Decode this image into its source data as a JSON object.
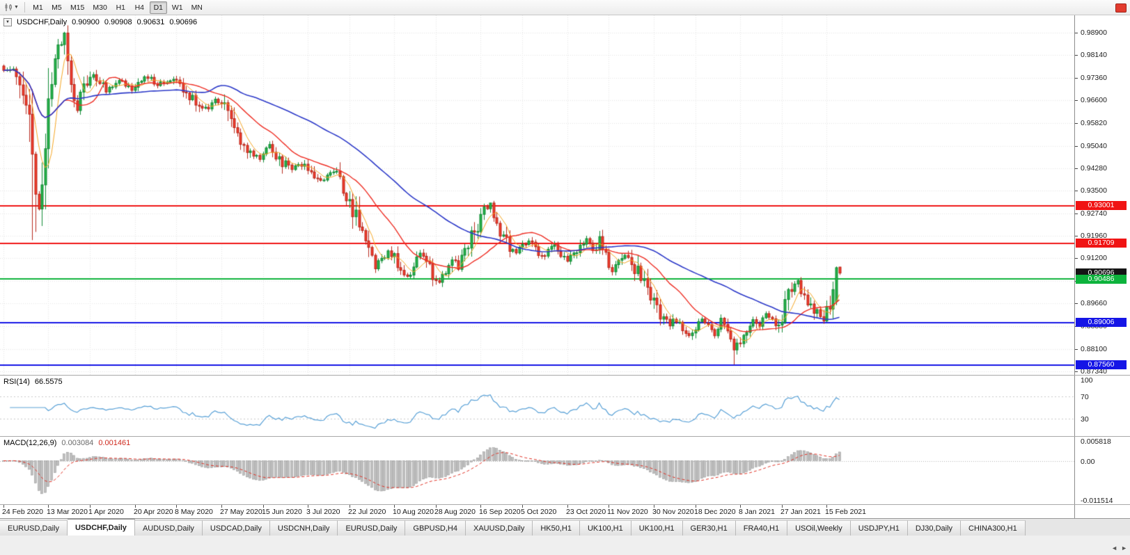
{
  "toolbar": {
    "timeframes": [
      "M1",
      "M5",
      "M15",
      "M30",
      "H1",
      "H4",
      "D1",
      "W1",
      "MN"
    ],
    "active_timeframe": "D1"
  },
  "chart": {
    "legend": {
      "symbol_label": "USDCHF,Daily",
      "open": "0.90900",
      "high": "0.90908",
      "low": "0.90631",
      "close": "0.90696"
    },
    "price_scale": [
      "0.98900",
      "0.98140",
      "0.97360",
      "0.96600",
      "0.95820",
      "0.95040",
      "0.94280",
      "0.93500",
      "0.92740",
      "0.91960",
      "0.91200",
      "0.90420",
      "0.89660",
      "0.88880",
      "0.88100",
      "0.87340"
    ],
    "price_markers": [
      {
        "label": "0.93001",
        "value": 0.93001,
        "color": "#f01414",
        "type": "resistance-line"
      },
      {
        "label": "0.91709",
        "value": 0.91709,
        "color": "#f01414",
        "type": "resistance-line"
      },
      {
        "label": "0.90696",
        "value": 0.90696,
        "color": "#151515",
        "type": "current-price"
      },
      {
        "label": "0.90486",
        "value": 0.90486,
        "color": "#0db33c",
        "type": "support-line"
      },
      {
        "label": "0.89006",
        "value": 0.89006,
        "color": "#1515e6",
        "type": "support-line"
      },
      {
        "label": "0.87560",
        "value": 0.8756,
        "color": "#1515e6",
        "type": "support-line"
      }
    ],
    "time_labels": [
      "24 Feb 2020",
      "13 Mar 2020",
      "1 Apr 2020",
      "20 Apr 2020",
      "8 May 2020",
      "27 May 2020",
      "15 Jun 2020",
      "3 Jul 2020",
      "22 Jul 2020",
      "10 Aug 2020",
      "28 Aug 2020",
      "16 Sep 2020",
      "5 Oct 2020",
      "23 Oct 2020",
      "11 Nov 2020",
      "30 Nov 2020",
      "18 Dec 2020",
      "8 Jan 2021",
      "27 Jan 2021",
      "15 Feb 2021"
    ]
  },
  "rsi": {
    "label": "RSI(14)",
    "value": "66.5575",
    "line_color": "#58a0d6",
    "axis": [
      {
        "label": "100",
        "value": 100,
        "line": false
      },
      {
        "label": "70",
        "value": 70,
        "line": true
      },
      {
        "label": "30",
        "value": 30,
        "line": true
      }
    ]
  },
  "macd": {
    "label": "MACD(12,26,9)",
    "main_value": "0.003084",
    "signal_value": "0.001461",
    "hist_fill": "#bfbfbf",
    "hist_border": "#8c8c8c",
    "signal_color": "#e03024",
    "axis": [
      {
        "label": "0.005818",
        "value": 0.005818,
        "line": false
      },
      {
        "label": "0.00",
        "value": 0,
        "line": true
      },
      {
        "label": "-0.011514",
        "value": -0.011514,
        "line": false
      }
    ]
  },
  "tabs": {
    "items": [
      {
        "label": "EURUSD,Daily",
        "active": false
      },
      {
        "label": "USDCHF,Daily",
        "active": true
      },
      {
        "label": "AUDUSD,Daily",
        "active": false
      },
      {
        "label": "USDCAD,Daily",
        "active": false
      },
      {
        "label": "USDCNH,Daily",
        "active": false
      },
      {
        "label": "EURUSD,Daily",
        "active": false
      },
      {
        "label": "GBPUSD,H4",
        "active": false
      },
      {
        "label": "XAUUSD,Daily",
        "active": false
      },
      {
        "label": "HK50,H1",
        "active": false
      },
      {
        "label": "UK100,H1",
        "active": false
      },
      {
        "label": "UK100,H1",
        "active": false
      },
      {
        "label": "GER30,H1",
        "active": false
      },
      {
        "label": "FRA40,H1",
        "active": false
      },
      {
        "label": "USOil,Weekly",
        "active": false
      },
      {
        "label": "USDJPY,H1",
        "active": false
      },
      {
        "label": "DJ30,Daily",
        "active": false
      },
      {
        "label": "CHINA300,H1",
        "active": false
      }
    ],
    "scroll_left": "◄",
    "scroll_right": "►"
  },
  "chart_data": {
    "type": "candlestick",
    "symbol": "USDCHF",
    "timeframe": "Daily",
    "n_candles": 262,
    "seed": 13,
    "price_axis": {
      "max": 0.989,
      "min": 0.8734
    },
    "last_candle": {
      "open": 0.909,
      "high": 0.90908,
      "low": 0.90631,
      "close": 0.90696
    },
    "close_keyframes": [
      [
        0,
        0.976
      ],
      [
        3,
        0.9775
      ],
      [
        6,
        0.974
      ],
      [
        8,
        0.96
      ],
      [
        9,
        0.942
      ],
      [
        10,
        0.933
      ],
      [
        11,
        0.928
      ],
      [
        12,
        0.94
      ],
      [
        13,
        0.956
      ],
      [
        15,
        0.974
      ],
      [
        17,
        0.984
      ],
      [
        19,
        0.988
      ],
      [
        20,
        0.98
      ],
      [
        21,
        0.97
      ],
      [
        23,
        0.964
      ],
      [
        25,
        0.972
      ],
      [
        28,
        0.9755
      ],
      [
        32,
        0.969
      ],
      [
        36,
        0.973
      ],
      [
        40,
        0.97
      ],
      [
        44,
        0.9745
      ],
      [
        48,
        0.9715
      ],
      [
        52,
        0.973
      ],
      [
        56,
        0.97
      ],
      [
        60,
        0.9655
      ],
      [
        64,
        0.9625
      ],
      [
        66,
        0.9665
      ],
      [
        70,
        0.9615
      ],
      [
        73,
        0.952
      ],
      [
        76,
        0.948
      ],
      [
        80,
        0.9465
      ],
      [
        83,
        0.951
      ],
      [
        86,
        0.9455
      ],
      [
        90,
        0.9425
      ],
      [
        94,
        0.9445
      ],
      [
        97,
        0.94
      ],
      [
        100,
        0.9385
      ],
      [
        102,
        0.9415
      ],
      [
        105,
        0.9395
      ],
      [
        108,
        0.932
      ],
      [
        110,
        0.9255
      ],
      [
        112,
        0.9185
      ],
      [
        114,
        0.9135
      ],
      [
        116,
        0.9095
      ],
      [
        118,
        0.9115
      ],
      [
        120,
        0.915
      ],
      [
        122,
        0.9125
      ],
      [
        124,
        0.9085
      ],
      [
        126,
        0.906
      ],
      [
        128,
        0.909
      ],
      [
        130,
        0.913
      ],
      [
        132,
        0.9105
      ],
      [
        134,
        0.9065
      ],
      [
        136,
        0.9035
      ],
      [
        138,
        0.908
      ],
      [
        140,
        0.911
      ],
      [
        142,
        0.9095
      ],
      [
        144,
        0.914
      ],
      [
        146,
        0.918
      ],
      [
        148,
        0.9235
      ],
      [
        150,
        0.9285
      ],
      [
        152,
        0.9298
      ],
      [
        154,
        0.9235
      ],
      [
        156,
        0.9185
      ],
      [
        158,
        0.9155
      ],
      [
        160,
        0.9135
      ],
      [
        162,
        0.9165
      ],
      [
        164,
        0.9185
      ],
      [
        166,
        0.9155
      ],
      [
        168,
        0.9125
      ],
      [
        170,
        0.9145
      ],
      [
        172,
        0.9165
      ],
      [
        174,
        0.9135
      ],
      [
        176,
        0.9105
      ],
      [
        178,
        0.9135
      ],
      [
        180,
        0.9165
      ],
      [
        182,
        0.9185
      ],
      [
        184,
        0.9155
      ],
      [
        186,
        0.9175
      ],
      [
        188,
        0.9125
      ],
      [
        190,
        0.9075
      ],
      [
        192,
        0.9115
      ],
      [
        194,
        0.9135
      ],
      [
        196,
        0.9105
      ],
      [
        198,
        0.9065
      ],
      [
        200,
        0.9025
      ],
      [
        202,
        0.8985
      ],
      [
        204,
        0.8945
      ],
      [
        206,
        0.8925
      ],
      [
        208,
        0.8895
      ],
      [
        210,
        0.8915
      ],
      [
        212,
        0.8885
      ],
      [
        214,
        0.8855
      ],
      [
        216,
        0.8885
      ],
      [
        218,
        0.8915
      ],
      [
        220,
        0.8895
      ],
      [
        222,
        0.8865
      ],
      [
        224,
        0.8905
      ],
      [
        226,
        0.8855
      ],
      [
        228,
        0.88
      ],
      [
        230,
        0.8845
      ],
      [
        232,
        0.8885
      ],
      [
        234,
        0.8915
      ],
      [
        236,
        0.8895
      ],
      [
        238,
        0.8925
      ],
      [
        240,
        0.8905
      ],
      [
        242,
        0.8895
      ],
      [
        244,
        0.8955
      ],
      [
        246,
        0.9005
      ],
      [
        248,
        0.9042
      ],
      [
        250,
        0.8985
      ],
      [
        252,
        0.8955
      ],
      [
        254,
        0.8935
      ],
      [
        256,
        0.8905
      ],
      [
        258,
        0.8965
      ],
      [
        260,
        0.9078
      ],
      [
        261,
        0.90696
      ]
    ],
    "special_candles": [
      {
        "i": 9,
        "l": 0.9182
      },
      {
        "i": 10,
        "l": 0.921
      },
      {
        "i": 152,
        "h": 0.9302
      },
      {
        "i": 228,
        "l": 0.8757
      },
      {
        "i": 248,
        "h": 0.9048
      },
      {
        "i": 260,
        "o": 0.8972,
        "c": 0.9088,
        "h": 0.9092,
        "l": 0.896
      },
      {
        "i": 261,
        "o": 0.909,
        "h": 0.90908,
        "l": 0.90631,
        "c": 0.90696
      }
    ],
    "moving_averages": [
      {
        "period": 6,
        "color": "#f5a623",
        "width": 1
      },
      {
        "period": 20,
        "color": "#ee2e24",
        "width": 1.4
      },
      {
        "period": 55,
        "color": "#2b38c8",
        "width": 1.6
      }
    ],
    "candle_colors": {
      "up_fill": "#27b24a",
      "up_stroke": "#0f8a33",
      "down_fill": "#f23b2b",
      "down_stroke": "#b7281c"
    },
    "grid_color": "#e4e4e4",
    "rsi_period": 14,
    "macd_params": {
      "fast": 12,
      "slow": 26,
      "signal": 9
    }
  }
}
